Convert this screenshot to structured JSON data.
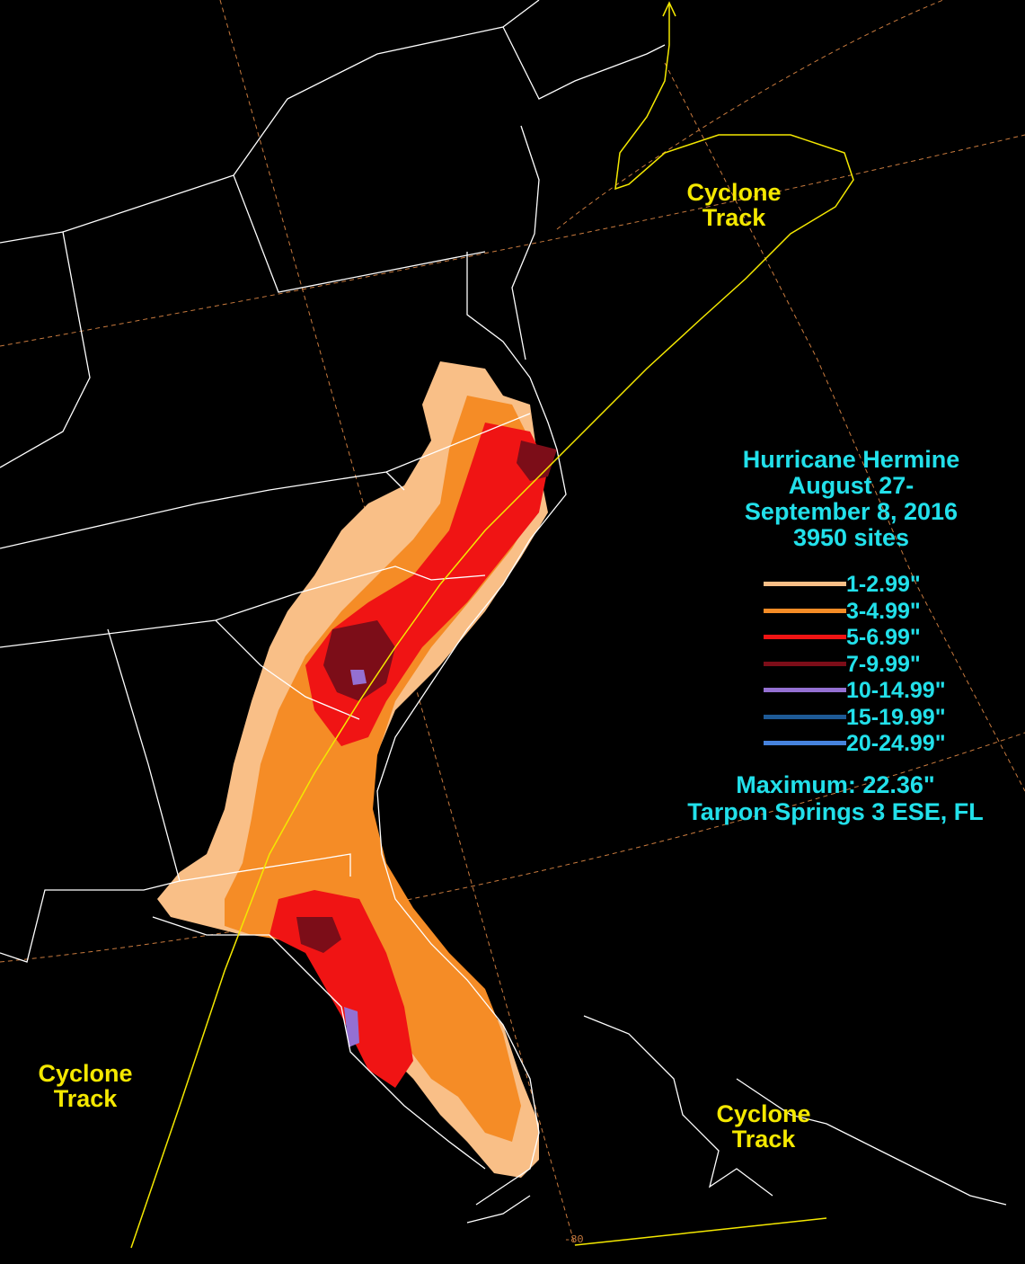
{
  "title": {
    "line1": "Hurricane Hermine",
    "line2": "August 27-",
    "line3": "September 8, 2016",
    "line4": "3950 sites"
  },
  "legend": [
    {
      "label": "1-2.99\"",
      "color": "#f9bf87"
    },
    {
      "label": "3-4.99\"",
      "color": "#f58c26"
    },
    {
      "label": "5-6.99\"",
      "color": "#f01414"
    },
    {
      "label": "7-9.99\"",
      "color": "#7c0d18"
    },
    {
      "label": "10-14.99\"",
      "color": "#9470d2"
    },
    {
      "label": "15-19.99\"",
      "color": "#1e5a96"
    },
    {
      "label": "20-24.99\"",
      "color": "#4682dc"
    }
  ],
  "maximum": {
    "line1": "Maximum:  22.36\"",
    "line2": "Tarpon Springs 3 ESE, FL"
  },
  "track_labels": {
    "north": {
      "line1": "Cyclone",
      "line2": "Track"
    },
    "gulf": {
      "line1": "Cyclone",
      "line2": "Track"
    },
    "bahamas": {
      "line1": "Cyclone",
      "line2": "Track"
    }
  },
  "grid_label": "-80",
  "colors": {
    "background": "#000000",
    "borders": "#ffffff",
    "track": "#f4e800",
    "graticule": "#c87a3e",
    "text": "#22e0ea"
  }
}
